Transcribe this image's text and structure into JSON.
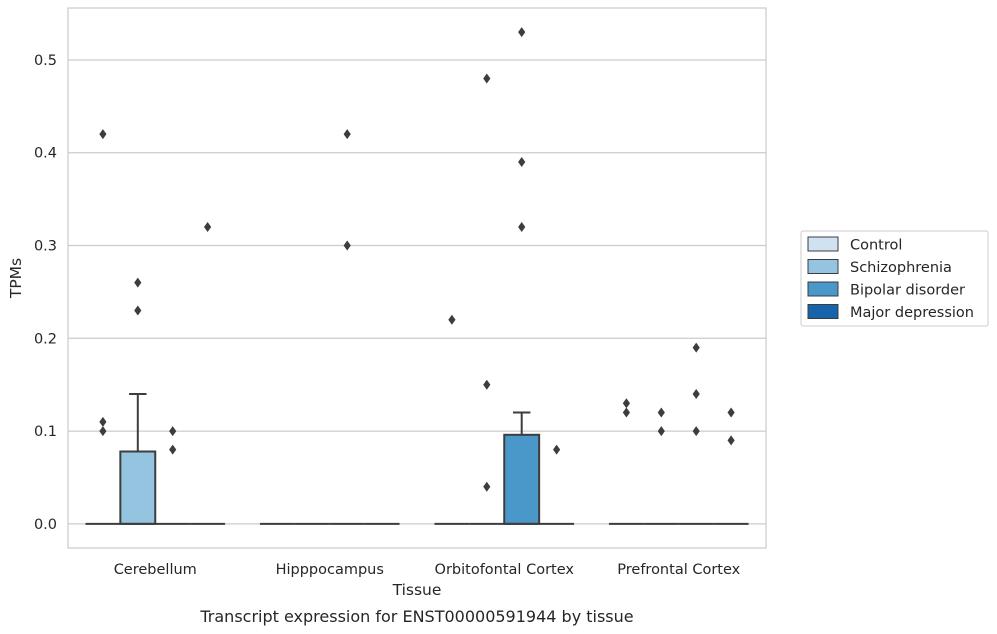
{
  "chart_data": {
    "type": "box",
    "title": "",
    "caption": "Transcript expression for ENST00000591944 by tissue",
    "xlabel": "Tissue",
    "ylabel": "TPMs",
    "ylim": [
      -0.026,
      0.556
    ],
    "yticks": [
      0.0,
      0.1,
      0.2,
      0.3,
      0.4,
      0.5
    ],
    "ytick_labels": [
      "0.0",
      "0.1",
      "0.2",
      "0.3",
      "0.4",
      "0.5"
    ],
    "grid": "horizontal",
    "legend_position": "right",
    "categories": [
      "Cerebellum",
      "Hipppocampus",
      "Orbitofontal Cortex",
      "Prefrontal Cortex"
    ],
    "series": [
      {
        "name": "Control",
        "color": "#d0e1f2",
        "boxes": [
          {
            "q1": 0,
            "median": 0,
            "q3": 0,
            "whisker_low": 0,
            "whisker_high": 0,
            "outliers": [
              0.11,
              0.1,
              0.42
            ]
          },
          {
            "q1": 0,
            "median": 0,
            "q3": 0,
            "whisker_low": 0,
            "whisker_high": 0,
            "outliers": []
          },
          {
            "q1": 0,
            "median": 0,
            "q3": 0,
            "whisker_low": 0,
            "whisker_high": 0,
            "outliers": [
              0.22
            ]
          },
          {
            "q1": 0,
            "median": 0,
            "q3": 0,
            "whisker_low": 0,
            "whisker_high": 0,
            "outliers": [
              0.13,
              0.12
            ]
          }
        ]
      },
      {
        "name": "Schizophrenia",
        "color": "#94c4df",
        "boxes": [
          {
            "q1": 0,
            "median": 0,
            "q3": 0.078,
            "whisker_low": 0,
            "whisker_high": 0.14,
            "outliers": [
              0.26,
              0.23
            ]
          },
          {
            "q1": 0,
            "median": 0,
            "q3": 0,
            "whisker_low": 0,
            "whisker_high": 0,
            "outliers": []
          },
          {
            "q1": 0,
            "median": 0,
            "q3": 0,
            "whisker_low": 0,
            "whisker_high": 0,
            "outliers": [
              0.48,
              0.15,
              0.04
            ]
          },
          {
            "q1": 0,
            "median": 0,
            "q3": 0,
            "whisker_low": 0,
            "whisker_high": 0,
            "outliers": [
              0.12,
              0.1
            ]
          }
        ]
      },
      {
        "name": "Bipolar disorder",
        "color": "#4a98c9",
        "boxes": [
          {
            "q1": 0,
            "median": 0,
            "q3": 0,
            "whisker_low": 0,
            "whisker_high": 0,
            "outliers": [
              0.1,
              0.08
            ]
          },
          {
            "q1": 0,
            "median": 0,
            "q3": 0,
            "whisker_low": 0,
            "whisker_high": 0,
            "outliers": [
              0.42,
              0.3
            ]
          },
          {
            "q1": 0,
            "median": 0,
            "q3": 0.096,
            "whisker_low": 0,
            "whisker_high": 0.12,
            "outliers": [
              0.53,
              0.39,
              0.32
            ]
          },
          {
            "q1": 0,
            "median": 0,
            "q3": 0,
            "whisker_low": 0,
            "whisker_high": 0,
            "outliers": [
              0.19,
              0.14,
              0.1
            ]
          }
        ]
      },
      {
        "name": "Major depression",
        "color": "#1764ab",
        "boxes": [
          {
            "q1": 0,
            "median": 0,
            "q3": 0,
            "whisker_low": 0,
            "whisker_high": 0,
            "outliers": [
              0.32
            ]
          },
          {
            "q1": 0,
            "median": 0,
            "q3": 0,
            "whisker_low": 0,
            "whisker_high": 0,
            "outliers": []
          },
          {
            "q1": 0,
            "median": 0,
            "q3": 0,
            "whisker_low": 0,
            "whisker_high": 0,
            "outliers": [
              0.08
            ]
          },
          {
            "q1": 0,
            "median": 0,
            "q3": 0,
            "whisker_low": 0,
            "whisker_high": 0,
            "outliers": [
              0.12,
              0.09
            ]
          }
        ]
      }
    ]
  }
}
